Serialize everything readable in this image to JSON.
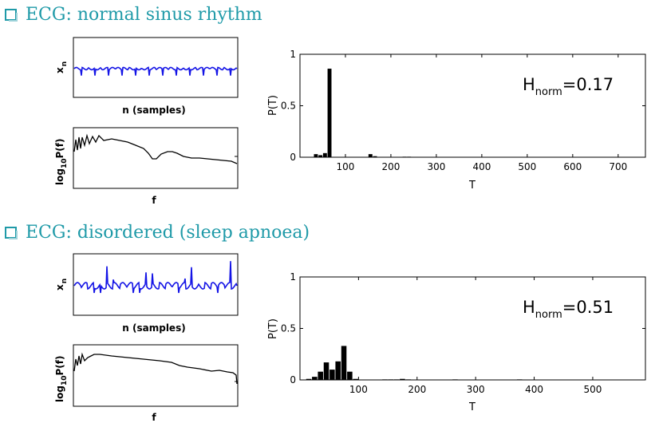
{
  "sections": [
    {
      "heading": "ECG: normal sinus rhythm",
      "colors": {
        "heading": "#1f9aa8",
        "signal": "#1414e6",
        "spectrum": "#000000",
        "bars": "#000000"
      },
      "signal_panel": {
        "xlabel": "n (samples)",
        "ylabel_base": "x",
        "ylabel_sub": "n"
      },
      "spectrum_panel": {
        "xlabel": "f",
        "ylabel_pre": "log",
        "ylabel_sub": "10",
        "ylabel_post": "P(f)"
      },
      "hist_panel": {
        "xlabel": "T",
        "ylabel": "P(T)",
        "annot_base": "H",
        "annot_sub": "norm",
        "annot_value": "=0.17"
      },
      "chart_data": {
        "type": "bar",
        "title": "",
        "xlabel": "T",
        "ylabel": "P(T)",
        "xlim": [
          0,
          760
        ],
        "ylim": [
          0,
          1
        ],
        "x_ticks": [
          "100",
          "200",
          "300",
          "400",
          "500",
          "600",
          "700"
        ],
        "y_ticks": [
          "0",
          "0.5",
          "1"
        ],
        "bin_width": 10,
        "x": [
          35,
          45,
          55,
          65,
          155,
          165,
          230,
          240
        ],
        "values": [
          0.03,
          0.02,
          0.04,
          0.86,
          0.03,
          0.01,
          0.005,
          0.005
        ],
        "annotation": "Hnorm=0.17"
      }
    },
    {
      "heading": "ECG: disordered (sleep apnoea)",
      "colors": {
        "heading": "#1f9aa8",
        "signal": "#1414e6",
        "spectrum": "#000000",
        "bars": "#000000"
      },
      "signal_panel": {
        "xlabel": "n (samples)",
        "ylabel_base": "x",
        "ylabel_sub": "n"
      },
      "spectrum_panel": {
        "xlabel": "f",
        "ylabel_pre": "log",
        "ylabel_sub": "10",
        "ylabel_post": "P(f)"
      },
      "hist_panel": {
        "xlabel": "T",
        "ylabel": "P(T)",
        "annot_base": "H",
        "annot_sub": "norm",
        "annot_value": "=0.51"
      },
      "chart_data": {
        "type": "bar",
        "title": "",
        "xlabel": "T",
        "ylabel": "P(T)",
        "xlim": [
          0,
          590
        ],
        "ylim": [
          0,
          1
        ],
        "x_ticks": [
          "100",
          "200",
          "300",
          "400",
          "500"
        ],
        "y_ticks": [
          "0",
          "0.5",
          "1"
        ],
        "bin_width": 10,
        "x": [
          15,
          25,
          35,
          45,
          55,
          65,
          75,
          85,
          95,
          145,
          155,
          165,
          175,
          185,
          265,
          375
        ],
        "values": [
          0.01,
          0.03,
          0.08,
          0.17,
          0.1,
          0.18,
          0.33,
          0.08,
          0.01,
          0.005,
          0.005,
          0.005,
          0.01,
          0.005,
          0.005,
          0.005
        ],
        "annotation": "Hnorm=0.51"
      }
    }
  ]
}
